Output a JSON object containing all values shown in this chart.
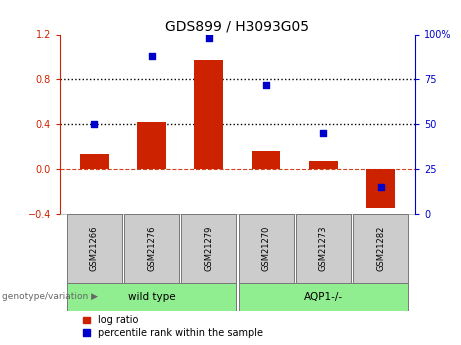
{
  "title": "GDS899 / H3093G05",
  "samples": [
    "GSM21266",
    "GSM21276",
    "GSM21279",
    "GSM21270",
    "GSM21273",
    "GSM21282"
  ],
  "log_ratio": [
    0.13,
    0.42,
    0.97,
    0.16,
    0.07,
    -0.35
  ],
  "percentile_rank": [
    50,
    88,
    98,
    72,
    45,
    15
  ],
  "group_boundaries": [
    3
  ],
  "group_labels": [
    "wild type",
    "AQP1-/-"
  ],
  "group_color": "#90EE90",
  "bar_color": "#cc2200",
  "dot_color": "#0000cc",
  "ylim_left": [
    -0.4,
    1.2
  ],
  "ylim_right": [
    0,
    100
  ],
  "yticks_left": [
    -0.4,
    0.0,
    0.4,
    0.8,
    1.2
  ],
  "yticks_right": [
    0,
    25,
    50,
    75,
    100
  ],
  "hlines": [
    0.4,
    0.8
  ],
  "zero_line_color": "#cc4422",
  "hline_color": "#000000",
  "group_label_text": "genotype/variation",
  "legend_bar": "log ratio",
  "legend_dot": "percentile rank within the sample",
  "bar_width": 0.5,
  "sample_box_color": "#cccccc",
  "right_yaxis_color": "#0000cc",
  "left_yaxis_color": "#cc2200",
  "title_fontsize": 10,
  "tick_fontsize": 7,
  "sample_fontsize": 6,
  "legend_fontsize": 7
}
